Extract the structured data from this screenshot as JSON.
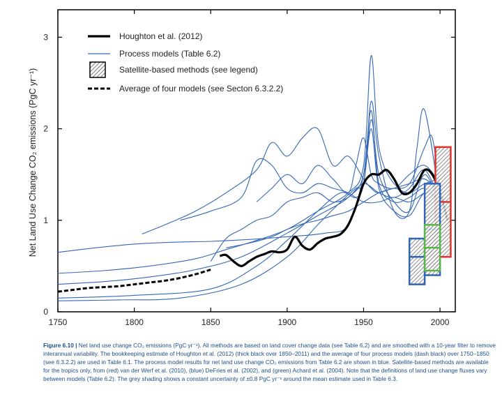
{
  "chart_data": {
    "type": "line",
    "ylabel": "Net Land Use Change CO₂ emissions (PgC yr⁻¹)",
    "xlim": [
      1750,
      2010
    ],
    "ylim": [
      0,
      3.3
    ],
    "xticks": [
      1750,
      1800,
      1850,
      1900,
      1950,
      2000
    ],
    "yticks": [
      0,
      1,
      2,
      3
    ],
    "legend_position": "top-left",
    "legend": [
      {
        "label": "Houghton et al. (2012)",
        "style": "thick-black"
      },
      {
        "label": "Process models (Table 6.2)",
        "style": "blue-line"
      },
      {
        "label": "Satellite-based methods (see legend)",
        "style": "hatched-box"
      },
      {
        "label": "Average of four models (see Secton 6.3.2.2)",
        "style": "dashed-black"
      }
    ],
    "colors": {
      "houghton": "#000000",
      "process": "#3467b5",
      "red_box": "#e0332d",
      "blue_box": "#2f64b6",
      "green_box": "#5ab449"
    },
    "series": [
      {
        "name": "Houghton et al. (2012)",
        "x": [
          1856,
          1860,
          1865,
          1870,
          1875,
          1880,
          1885,
          1890,
          1895,
          1900,
          1905,
          1910,
          1915,
          1920,
          1925,
          1930,
          1935,
          1940,
          1945,
          1950,
          1955,
          1960,
          1965,
          1970,
          1975,
          1980,
          1985,
          1990,
          1995,
          2000,
          2005
        ],
        "y": [
          0.61,
          0.62,
          0.55,
          0.5,
          0.55,
          0.6,
          0.63,
          0.66,
          0.65,
          0.68,
          0.82,
          0.72,
          0.68,
          0.75,
          0.8,
          0.82,
          0.85,
          0.95,
          1.15,
          1.4,
          1.5,
          1.5,
          1.55,
          1.45,
          1.3,
          1.3,
          1.4,
          1.55,
          1.5,
          1.3,
          1.0
        ]
      },
      {
        "name": "Average of four models (see Secton 6.3.2.2)",
        "x": [
          1750,
          1760,
          1770,
          1780,
          1790,
          1800,
          1810,
          1820,
          1830,
          1840,
          1850
        ],
        "y": [
          0.22,
          0.24,
          0.26,
          0.27,
          0.28,
          0.3,
          0.32,
          0.34,
          0.37,
          0.41,
          0.46
        ]
      },
      {
        "name": "",
        "x": [
          1750,
          1775,
          1800,
          1825,
          1850,
          1875,
          1900,
          1925,
          1940,
          1950,
          1955,
          1960,
          1970,
          1980,
          1990,
          2000
        ],
        "y": [
          0.65,
          0.7,
          0.74,
          0.76,
          0.77,
          0.79,
          0.82,
          0.86,
          0.95,
          1.5,
          2.2,
          1.4,
          1.2,
          1.25,
          1.35,
          1.2
        ]
      },
      {
        "name": "",
        "x": [
          1750,
          1780,
          1810,
          1840,
          1860,
          1880,
          1900,
          1920,
          1940,
          1950,
          1955,
          1960,
          1970,
          1980,
          1990,
          1995,
          2000
        ],
        "y": [
          0.42,
          0.45,
          0.5,
          0.58,
          0.68,
          0.78,
          0.9,
          1.1,
          1.3,
          1.6,
          2.8,
          1.8,
          1.4,
          1.4,
          1.8,
          1.9,
          1.3
        ]
      },
      {
        "name": "",
        "x": [
          1750,
          1780,
          1810,
          1840,
          1870,
          1900,
          1920,
          1940,
          1950,
          1955,
          1960,
          1970,
          1980,
          1985,
          1990,
          2000
        ],
        "y": [
          0.3,
          0.33,
          0.38,
          0.46,
          0.6,
          0.86,
          1.05,
          1.25,
          1.5,
          2.3,
          1.7,
          1.1,
          1.1,
          1.8,
          2.2,
          1.2
        ]
      },
      {
        "name": "",
        "x": [
          1750,
          1800,
          1850,
          1880,
          1900,
          1920,
          1935,
          1945,
          1950,
          1955,
          1960,
          1970,
          1980,
          1990,
          2000
        ],
        "y": [
          0.15,
          0.18,
          0.25,
          0.5,
          0.78,
          1.1,
          1.3,
          1.25,
          1.4,
          2.1,
          1.5,
          1.2,
          1.1,
          1.5,
          1.15
        ]
      },
      {
        "name": "",
        "x": [
          1750,
          1790,
          1830,
          1870,
          1900,
          1920,
          1935,
          1945,
          1950,
          1955,
          1960,
          1970,
          1980,
          1990,
          2000
        ],
        "y": [
          0.12,
          0.13,
          0.15,
          0.3,
          0.6,
          0.95,
          1.2,
          1.35,
          1.4,
          2.0,
          1.35,
          1.1,
          1.05,
          1.3,
          1.2
        ]
      },
      {
        "name": "",
        "x": [
          1805,
          1820,
          1840,
          1860,
          1880,
          1890,
          1900,
          1910,
          1920,
          1930,
          1940,
          1950,
          1955,
          1960,
          1970,
          1980,
          1990,
          2000
        ],
        "y": [
          0.85,
          0.95,
          1.1,
          1.3,
          1.55,
          1.85,
          1.7,
          1.9,
          2.0,
          1.6,
          1.7,
          1.45,
          1.35,
          1.3,
          1.35,
          1.3,
          1.4,
          1.45
        ]
      },
      {
        "name": "",
        "x": [
          1830,
          1850,
          1870,
          1880,
          1890,
          1900,
          1910,
          1920,
          1930,
          1940,
          1950,
          1960,
          1970,
          1980,
          1990,
          2000
        ],
        "y": [
          1.0,
          1.1,
          1.25,
          1.65,
          1.6,
          1.35,
          1.3,
          1.4,
          1.35,
          1.3,
          1.2,
          1.2,
          1.25,
          1.2,
          1.3,
          1.35
        ]
      },
      {
        "name": "",
        "x": [
          1880,
          1890,
          1900,
          1910,
          1920,
          1930,
          1940,
          1945,
          1950,
          1955,
          1960,
          1970,
          1980,
          1990,
          2000
        ],
        "y": [
          1.2,
          1.35,
          1.5,
          1.4,
          1.6,
          1.45,
          1.3,
          1.6,
          1.9,
          1.5,
          1.4,
          1.35,
          1.5,
          1.6,
          1.4
        ]
      },
      {
        "name": "",
        "x": [
          1860,
          1875,
          1890,
          1900,
          1910,
          1920,
          1930,
          1940,
          1950,
          1960,
          1970,
          1980,
          1990,
          2000
        ],
        "y": [
          0.7,
          0.75,
          0.82,
          0.9,
          0.96,
          1.0,
          1.05,
          1.1,
          1.2,
          1.3,
          1.35,
          1.4,
          1.45,
          1.3
        ]
      },
      {
        "name": "",
        "x": [
          1850,
          1860,
          1870,
          1880,
          1890,
          1900,
          1910,
          1920,
          1930,
          1940,
          1950,
          1960,
          1970,
          1980,
          1990,
          2000
        ],
        "y": [
          0.55,
          0.8,
          0.9,
          1.0,
          1.05,
          1.2,
          1.25,
          1.3,
          1.2,
          1.25,
          1.4,
          1.3,
          1.25,
          1.35,
          1.55,
          1.2
        ]
      }
    ],
    "boxes": [
      {
        "color": "red",
        "x0": 1997,
        "x1": 2007,
        "ymin": 0.6,
        "ymax": 1.8,
        "mid": 1.2
      },
      {
        "color": "blue",
        "x0": 1980,
        "x1": 1990,
        "ymin": 0.3,
        "ymax": 0.8,
        "mid": 0.6
      },
      {
        "color": "blue",
        "x0": 1990,
        "x1": 2000,
        "ymin": 0.4,
        "ymax": 1.4,
        "mid": 0.9
      },
      {
        "color": "green",
        "x0": 1990,
        "x1": 2000,
        "ymin": 0.45,
        "ymax": 0.95,
        "mid": 0.7
      }
    ]
  },
  "caption": {
    "label": "Figure 6.10 |",
    "text": "Net land use change CO₂ emissions (PgC yr⁻¹). All methods are based on land cover change data (see Table 6.2) and are smoothed with a 10-year filter to remove interannual variability. The bookkeeping estimate of Houghton et al. (2012) (thick black over 1850–2011) and the average of four process models (dash black) over 1750–1850 (see 6.3.2.2) are used in Table 6.1. The process model results for net land use change CO₂ emissions from Table 6.2 are shown in blue. Satellite-based methods are available for the tropics only, from (red) van der Werf et al. (2010), (blue) DeFries et al. (2002), and (green) Achard et al. (2004). Note that the definitions of land use change fluxes vary between models (Table 6.2). The grey shading shows a constant uncertainty of ±0.8 PgC yr⁻¹ around the mean estimate used in Table 6.3."
  }
}
